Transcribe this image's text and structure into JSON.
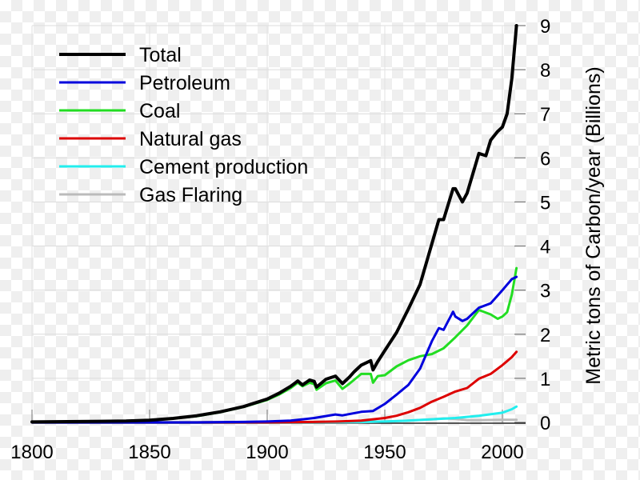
{
  "chart_data": {
    "type": "line",
    "title": "",
    "xlabel": "",
    "ylabel": "Metric tons of Carbon/year (Billions)",
    "xlim": [
      1800,
      2008
    ],
    "ylim": [
      0,
      9
    ],
    "x_ticks": [
      1800,
      1850,
      1900,
      1950,
      2000
    ],
    "y_ticks": [
      0,
      1,
      2,
      3,
      4,
      5,
      6,
      7,
      8,
      9
    ],
    "y_axis_side": "right",
    "grid": true,
    "legend_position": "top-left",
    "series": [
      {
        "name": "Total",
        "color": "#000000",
        "x": [
          1800,
          1820,
          1840,
          1850,
          1860,
          1870,
          1880,
          1890,
          1900,
          1905,
          1910,
          1913,
          1915,
          1918,
          1920,
          1921,
          1925,
          1929,
          1932,
          1935,
          1937,
          1940,
          1944,
          1945,
          1947,
          1950,
          1955,
          1960,
          1965,
          1970,
          1973,
          1975,
          1979,
          1980,
          1983,
          1985,
          1990,
          1993,
          1995,
          1998,
          2000,
          2002,
          2004,
          2006
        ],
        "y": [
          0.01,
          0.02,
          0.03,
          0.05,
          0.09,
          0.15,
          0.24,
          0.36,
          0.53,
          0.66,
          0.82,
          0.94,
          0.85,
          0.96,
          0.93,
          0.8,
          0.98,
          1.05,
          0.88,
          1.03,
          1.15,
          1.3,
          1.4,
          1.19,
          1.38,
          1.63,
          2.04,
          2.57,
          3.13,
          4.05,
          4.6,
          4.6,
          5.3,
          5.3,
          5.0,
          5.2,
          6.1,
          6.05,
          6.4,
          6.6,
          6.7,
          7.0,
          7.8,
          9.0
        ]
      },
      {
        "name": "Petroleum",
        "color": "#0000dd",
        "x": [
          1800,
          1870,
          1890,
          1900,
          1910,
          1920,
          1929,
          1932,
          1940,
          1945,
          1950,
          1955,
          1960,
          1965,
          1970,
          1973,
          1975,
          1979,
          1980,
          1983,
          1985,
          1990,
          1995,
          2000,
          2004,
          2006
        ],
        "y": [
          0,
          0,
          0.01,
          0.02,
          0.04,
          0.1,
          0.18,
          0.16,
          0.24,
          0.26,
          0.42,
          0.63,
          0.85,
          1.22,
          1.84,
          2.14,
          2.1,
          2.51,
          2.4,
          2.3,
          2.35,
          2.6,
          2.7,
          3.0,
          3.25,
          3.3
        ]
      },
      {
        "name": "Coal",
        "color": "#22dd22",
        "x": [
          1800,
          1820,
          1840,
          1850,
          1860,
          1870,
          1880,
          1890,
          1900,
          1905,
          1910,
          1913,
          1915,
          1918,
          1920,
          1921,
          1925,
          1929,
          1932,
          1935,
          1940,
          1944,
          1945,
          1947,
          1950,
          1955,
          1960,
          1965,
          1970,
          1975,
          1980,
          1985,
          1990,
          1995,
          1998,
          2000,
          2002,
          2004,
          2006
        ],
        "y": [
          0.01,
          0.02,
          0.03,
          0.05,
          0.09,
          0.14,
          0.23,
          0.35,
          0.51,
          0.63,
          0.78,
          0.9,
          0.82,
          0.9,
          0.87,
          0.74,
          0.89,
          0.95,
          0.76,
          0.88,
          1.1,
          1.1,
          0.9,
          1.05,
          1.07,
          1.27,
          1.41,
          1.5,
          1.55,
          1.68,
          1.93,
          2.2,
          2.55,
          2.45,
          2.35,
          2.4,
          2.5,
          2.9,
          3.5
        ]
      },
      {
        "name": "Natural gas",
        "color": "#dd0000",
        "x": [
          1800,
          1900,
          1920,
          1930,
          1940,
          1950,
          1955,
          1960,
          1965,
          1970,
          1975,
          1980,
          1985,
          1990,
          1995,
          2000,
          2004,
          2006
        ],
        "y": [
          0,
          0.002,
          0.01,
          0.02,
          0.04,
          0.1,
          0.15,
          0.23,
          0.33,
          0.47,
          0.58,
          0.7,
          0.78,
          0.99,
          1.1,
          1.3,
          1.48,
          1.6
        ]
      },
      {
        "name": "Cement production",
        "color": "#22eeee",
        "x": [
          1800,
          1920,
          1940,
          1950,
          1960,
          1970,
          1980,
          1990,
          2000,
          2004,
          2006
        ],
        "y": [
          0,
          0.005,
          0.01,
          0.02,
          0.04,
          0.07,
          0.1,
          0.15,
          0.22,
          0.3,
          0.36
        ]
      },
      {
        "name": "Gas Flaring",
        "color": "#bbbbbb",
        "x": [
          1800,
          1920,
          1940,
          1950,
          1960,
          1970,
          1975,
          1980,
          1985,
          1990,
          2000,
          2006
        ],
        "y": [
          0,
          0.002,
          0.005,
          0.02,
          0.04,
          0.07,
          0.09,
          0.08,
          0.05,
          0.05,
          0.06,
          0.06
        ]
      }
    ]
  }
}
